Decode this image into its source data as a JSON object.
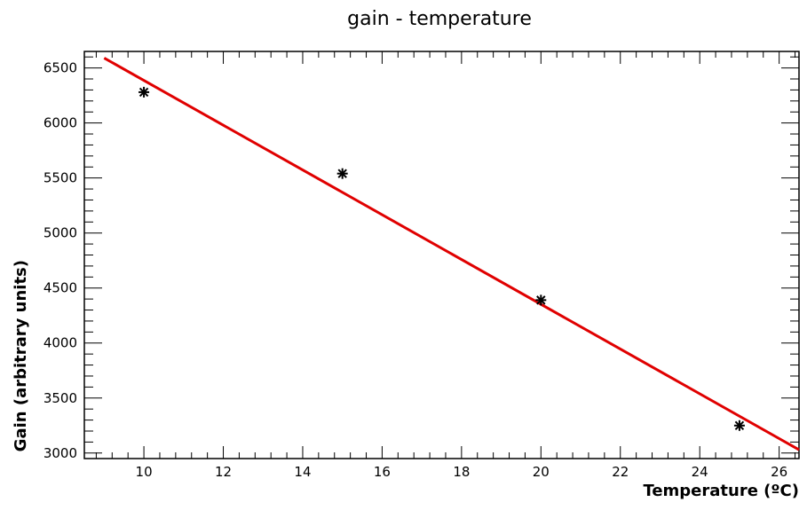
{
  "chart_data": {
    "type": "scatter",
    "title": "gain - temperature",
    "xlabel": "Temperature (ºC)",
    "ylabel": "Gain (arbitrary units)",
    "xlim": [
      8.5,
      26.5
    ],
    "ylim": [
      2950,
      6650
    ],
    "x_ticks": [
      10,
      12,
      14,
      16,
      18,
      20,
      22,
      24,
      26
    ],
    "y_ticks": [
      3000,
      3500,
      4000,
      4500,
      5000,
      5500,
      6000,
      6500
    ],
    "grid": false,
    "series": [
      {
        "type": "scatter",
        "marker": "asterisk",
        "color": "#000000",
        "points": [
          {
            "x": 10,
            "y": 6280
          },
          {
            "x": 15,
            "y": 5540
          },
          {
            "x": 20,
            "y": 4390
          },
          {
            "x": 25,
            "y": 3250
          }
        ]
      },
      {
        "type": "fit-line",
        "color": "#e00000",
        "points": [
          {
            "x": 9.0,
            "y": 6590
          },
          {
            "x": 26.5,
            "y": 3030
          }
        ]
      }
    ]
  }
}
